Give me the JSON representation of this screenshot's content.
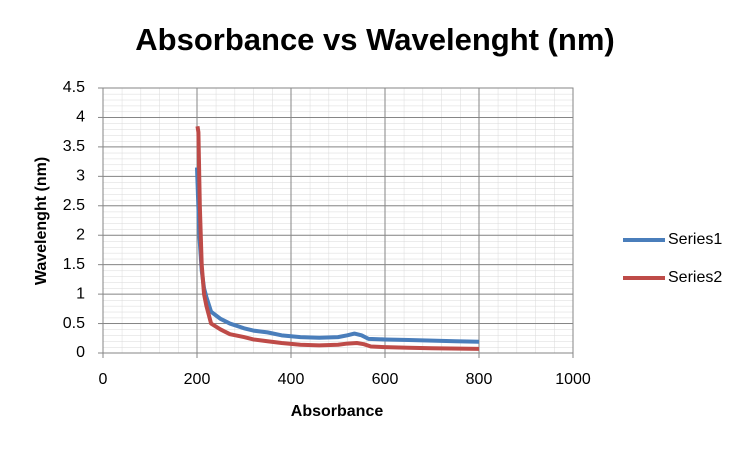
{
  "chart_data": {
    "type": "line",
    "title": "Absorbance vs Wavelenght (nm)",
    "x_label": "Absorbance",
    "y_label": "Wavelenght (nm)",
    "xlim": [
      0,
      1000
    ],
    "xticks": [
      0,
      200,
      400,
      600,
      800,
      1000
    ],
    "ylim": [
      0,
      4.5
    ],
    "yticks": [
      0,
      0.5,
      1,
      1.5,
      2,
      2.5,
      3,
      3.5,
      4,
      4.5
    ],
    "grid": true,
    "legend": "right",
    "series": [
      {
        "name": "Series1",
        "color": "#4a7ebb",
        "x": [
          200,
          205,
          210,
          215,
          220,
          230,
          250,
          270,
          300,
          320,
          350,
          380,
          420,
          460,
          500,
          520,
          535,
          550,
          565,
          600,
          650,
          700,
          750,
          800
        ],
        "values": [
          3.15,
          2.0,
          1.4,
          1.1,
          0.95,
          0.7,
          0.58,
          0.5,
          0.42,
          0.38,
          0.35,
          0.3,
          0.27,
          0.26,
          0.27,
          0.3,
          0.33,
          0.3,
          0.24,
          0.23,
          0.22,
          0.21,
          0.2,
          0.19
        ]
      },
      {
        "name": "Series2",
        "color": "#be4b48",
        "x": [
          201,
          203,
          206,
          210,
          215,
          220,
          230,
          250,
          270,
          300,
          320,
          350,
          380,
          420,
          460,
          500,
          520,
          540,
          555,
          570,
          600,
          650,
          700,
          800
        ],
        "values": [
          3.85,
          3.75,
          2.5,
          1.5,
          1.0,
          0.8,
          0.5,
          0.4,
          0.32,
          0.27,
          0.23,
          0.2,
          0.17,
          0.14,
          0.13,
          0.14,
          0.16,
          0.17,
          0.15,
          0.11,
          0.1,
          0.09,
          0.08,
          0.07
        ]
      }
    ]
  }
}
